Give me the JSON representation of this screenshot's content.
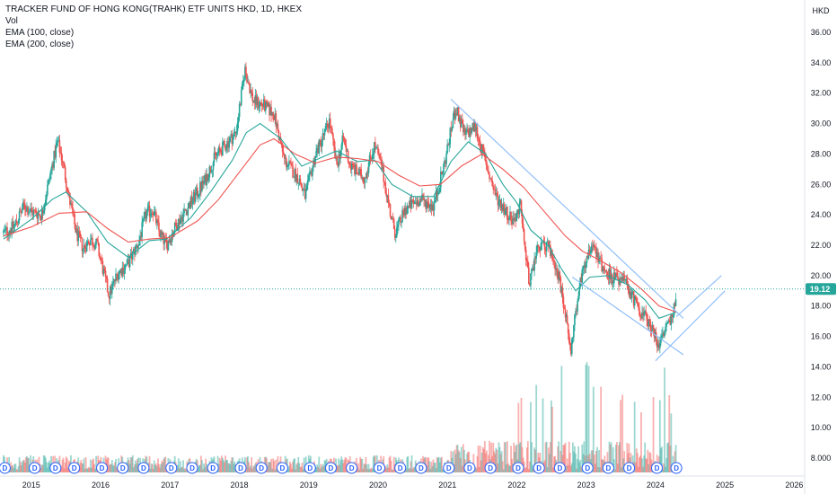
{
  "legend": {
    "title": "TRACKER FUND OF HONG KONG(TRAHK) ETF UNITS HKD, 1D, HKEX",
    "vol": "Vol",
    "ema100": "EMA (100, close)",
    "ema200": "EMA (200, close)"
  },
  "currency": "HKD",
  "last_price": "19.12",
  "dividend_marker": "D",
  "colors": {
    "up": "#26a69a",
    "down": "#ef5350",
    "ema100": "#26a69a",
    "ema200": "#ef5350",
    "trendline": "#90bff9",
    "last_price": "#26a69a"
  },
  "chart_data": {
    "type": "candlestick",
    "x_tick_labels": [
      "2015",
      "2016",
      "2017",
      "2018",
      "2019",
      "2020",
      "2021",
      "2022",
      "2023",
      "2024",
      "2025",
      "2026"
    ],
    "y_tick_labels": [
      "8.000",
      "10.00",
      "12.00",
      "14.00",
      "16.00",
      "18.00",
      "20.00",
      "22.00",
      "24.00",
      "26.00",
      "28.00",
      "30.00",
      "32.00",
      "34.00",
      "36.00"
    ],
    "ylim": [
      7.0,
      37.0
    ],
    "xlim": [
      2014.55,
      2026.15
    ],
    "price_path": [
      [
        2014.6,
        22.8
      ],
      [
        2014.75,
        23.2
      ],
      [
        2014.9,
        24.6
      ],
      [
        2015.0,
        24.2
      ],
      [
        2015.15,
        24.0
      ],
      [
        2015.3,
        27.2
      ],
      [
        2015.38,
        28.8
      ],
      [
        2015.45,
        27.6
      ],
      [
        2015.55,
        25.0
      ],
      [
        2015.65,
        22.8
      ],
      [
        2015.75,
        21.8
      ],
      [
        2015.85,
        22.4
      ],
      [
        2015.95,
        22.0
      ],
      [
        2016.08,
        19.5
      ],
      [
        2016.12,
        18.7
      ],
      [
        2016.25,
        20.2
      ],
      [
        2016.4,
        20.8
      ],
      [
        2016.55,
        22.2
      ],
      [
        2016.65,
        24.0
      ],
      [
        2016.75,
        24.4
      ],
      [
        2016.85,
        22.8
      ],
      [
        2016.95,
        22.0
      ],
      [
        2017.1,
        23.4
      ],
      [
        2017.3,
        24.8
      ],
      [
        2017.5,
        26.2
      ],
      [
        2017.65,
        27.8
      ],
      [
        2017.8,
        28.6
      ],
      [
        2017.95,
        29.4
      ],
      [
        2018.05,
        32.5
      ],
      [
        2018.08,
        33.6
      ],
      [
        2018.2,
        31.5
      ],
      [
        2018.35,
        31.2
      ],
      [
        2018.5,
        30.6
      ],
      [
        2018.65,
        27.6
      ],
      [
        2018.85,
        26.4
      ],
      [
        2018.95,
        25.2
      ],
      [
        2019.1,
        28.0
      ],
      [
        2019.25,
        29.6
      ],
      [
        2019.3,
        30.2
      ],
      [
        2019.4,
        27.2
      ],
      [
        2019.5,
        29.0
      ],
      [
        2019.6,
        27.2
      ],
      [
        2019.8,
        26.4
      ],
      [
        2019.95,
        28.6
      ],
      [
        2020.05,
        27.2
      ],
      [
        2020.2,
        23.6
      ],
      [
        2020.25,
        22.8
      ],
      [
        2020.4,
        24.4
      ],
      [
        2020.6,
        25.0
      ],
      [
        2020.8,
        24.6
      ],
      [
        2020.95,
        27.2
      ],
      [
        2021.08,
        30.2
      ],
      [
        2021.12,
        31.0
      ],
      [
        2021.25,
        29.2
      ],
      [
        2021.4,
        29.8
      ],
      [
        2021.55,
        27.4
      ],
      [
        2021.7,
        25.2
      ],
      [
        2021.85,
        24.2
      ],
      [
        2021.95,
        23.6
      ],
      [
        2022.05,
        24.6
      ],
      [
        2022.18,
        19.5
      ],
      [
        2022.3,
        21.8
      ],
      [
        2022.45,
        22.0
      ],
      [
        2022.6,
        20.0
      ],
      [
        2022.72,
        16.8
      ],
      [
        2022.78,
        15.2
      ],
      [
        2022.85,
        17.6
      ],
      [
        2022.95,
        20.5
      ],
      [
        2023.05,
        21.8
      ],
      [
        2023.1,
        22.2
      ],
      [
        2023.25,
        20.4
      ],
      [
        2023.4,
        19.8
      ],
      [
        2023.55,
        19.6
      ],
      [
        2023.7,
        18.3
      ],
      [
        2023.85,
        17.2
      ],
      [
        2023.95,
        16.6
      ],
      [
        2024.05,
        15.3
      ],
      [
        2024.15,
        16.6
      ],
      [
        2024.25,
        17.2
      ],
      [
        2024.3,
        19.12
      ]
    ],
    "series": [
      {
        "name": "EMA (100, close)",
        "points": [
          [
            2014.6,
            22.4
          ],
          [
            2015.0,
            23.7
          ],
          [
            2015.3,
            25.0
          ],
          [
            2015.5,
            25.5
          ],
          [
            2015.8,
            24.2
          ],
          [
            2016.1,
            22.2
          ],
          [
            2016.4,
            21.2
          ],
          [
            2016.7,
            22.3
          ],
          [
            2016.95,
            22.4
          ],
          [
            2017.3,
            23.8
          ],
          [
            2017.6,
            25.6
          ],
          [
            2017.9,
            27.6
          ],
          [
            2018.1,
            29.4
          ],
          [
            2018.3,
            30.0
          ],
          [
            2018.6,
            29.0
          ],
          [
            2018.9,
            27.2
          ],
          [
            2019.2,
            27.8
          ],
          [
            2019.4,
            28.2
          ],
          [
            2019.7,
            27.5
          ],
          [
            2019.95,
            27.6
          ],
          [
            2020.2,
            26.0
          ],
          [
            2020.5,
            25.2
          ],
          [
            2020.8,
            25.2
          ],
          [
            2021.05,
            27.5
          ],
          [
            2021.3,
            28.8
          ],
          [
            2021.55,
            28.0
          ],
          [
            2021.8,
            26.0
          ],
          [
            2022.0,
            24.8
          ],
          [
            2022.2,
            23.0
          ],
          [
            2022.45,
            22.0
          ],
          [
            2022.65,
            20.4
          ],
          [
            2022.85,
            19.0
          ],
          [
            2023.05,
            19.9
          ],
          [
            2023.3,
            20.0
          ],
          [
            2023.6,
            19.4
          ],
          [
            2023.85,
            18.4
          ],
          [
            2024.05,
            17.2
          ],
          [
            2024.3,
            17.6
          ]
        ]
      },
      {
        "name": "EMA (200, close)",
        "points": [
          [
            2014.6,
            22.6
          ],
          [
            2015.0,
            23.2
          ],
          [
            2015.4,
            24.1
          ],
          [
            2015.8,
            24.2
          ],
          [
            2016.1,
            23.1
          ],
          [
            2016.4,
            22.2
          ],
          [
            2016.7,
            22.4
          ],
          [
            2017.0,
            22.5
          ],
          [
            2017.4,
            23.6
          ],
          [
            2017.7,
            25.0
          ],
          [
            2018.0,
            26.8
          ],
          [
            2018.3,
            28.6
          ],
          [
            2018.5,
            29.0
          ],
          [
            2018.8,
            28.0
          ],
          [
            2019.1,
            27.4
          ],
          [
            2019.4,
            27.8
          ],
          [
            2019.7,
            27.7
          ],
          [
            2020.0,
            27.5
          ],
          [
            2020.3,
            26.6
          ],
          [
            2020.6,
            25.9
          ],
          [
            2020.9,
            26.0
          ],
          [
            2021.2,
            27.2
          ],
          [
            2021.5,
            28.0
          ],
          [
            2021.8,
            27.0
          ],
          [
            2022.1,
            25.8
          ],
          [
            2022.4,
            24.2
          ],
          [
            2022.7,
            22.6
          ],
          [
            2022.95,
            21.6
          ],
          [
            2023.2,
            21.0
          ],
          [
            2023.5,
            20.2
          ],
          [
            2023.8,
            19.1
          ],
          [
            2024.05,
            18.0
          ],
          [
            2024.3,
            17.6
          ]
        ]
      }
    ],
    "trendlines": [
      [
        [
          2021.05,
          31.6
        ],
        [
          2024.4,
          17.2
        ]
      ],
      [
        [
          2022.8,
          19.9
        ],
        [
          2024.4,
          14.8
        ]
      ],
      [
        [
          2024.0,
          14.4
        ],
        [
          2025.0,
          19.0
        ]
      ],
      [
        [
          2024.3,
          17.3
        ],
        [
          2024.95,
          20.0
        ]
      ]
    ],
    "dividend_dates": [
      2014.62,
      2015.05,
      2015.35,
      2015.62,
      2016.02,
      2016.32,
      2016.62,
      2017.02,
      2017.32,
      2017.62,
      2018.02,
      2018.32,
      2018.62,
      2019.02,
      2019.32,
      2019.62,
      2020.02,
      2020.32,
      2020.62,
      2021.02,
      2021.32,
      2021.62,
      2022.02,
      2022.32,
      2022.62,
      2023.02,
      2023.32,
      2023.62,
      2024.02,
      2024.3
    ],
    "volume_note": "relative volume bars, larger from 2021 onward"
  }
}
